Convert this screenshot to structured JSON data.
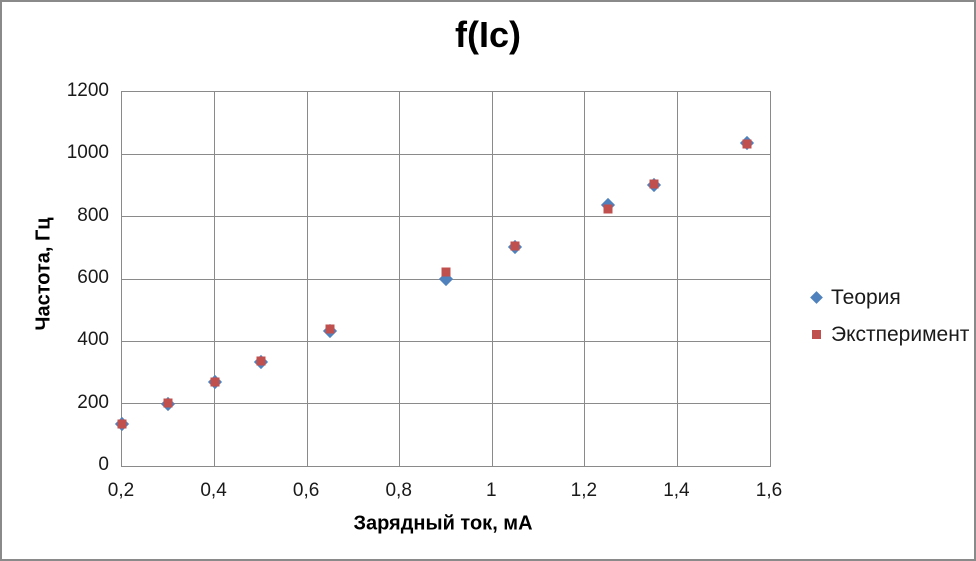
{
  "title": "f(Ic)",
  "axes": {
    "x_title": "Зарядный ток, мА",
    "y_title": "Частота, Гц"
  },
  "colors": {
    "series_theory": "#4F81BD",
    "series_experiment": "#C0504D",
    "gridline": "#8a8a8a",
    "frame_border": "#8a8a8a",
    "background": "#ffffff",
    "text": "#1a1a1a"
  },
  "chart_data": {
    "type": "scatter",
    "title": "f(Ic)",
    "xlabel": "Зарядный ток, мА",
    "ylabel": "Частота, Гц",
    "xlim": [
      0.2,
      1.6
    ],
    "ylim": [
      0,
      1200
    ],
    "grid": true,
    "legend_position": "right",
    "x_tick_values": [
      0.2,
      0.4,
      0.6,
      0.8,
      1.0,
      1.2,
      1.4,
      1.6
    ],
    "x_tick_labels": [
      "0,2",
      "0,4",
      "0,6",
      "0,8",
      "1",
      "1,2",
      "1,4",
      "1,6"
    ],
    "y_tick_values": [
      0,
      200,
      400,
      600,
      800,
      1000,
      1200
    ],
    "y_tick_labels": [
      "0",
      "200",
      "400",
      "600",
      "800",
      "1000",
      "1200"
    ],
    "series": [
      {
        "name": "Теория",
        "marker": "diamond",
        "color": "#4F81BD",
        "points": [
          [
            0.2,
            135
          ],
          [
            0.3,
            200
          ],
          [
            0.4,
            268
          ],
          [
            0.5,
            335
          ],
          [
            0.65,
            434
          ],
          [
            0.9,
            600
          ],
          [
            1.05,
            704
          ],
          [
            1.25,
            838
          ],
          [
            1.35,
            903
          ],
          [
            1.55,
            1037
          ]
        ]
      },
      {
        "name": "Экстперимент",
        "marker": "square",
        "color": "#C0504D",
        "points": [
          [
            0.2,
            135
          ],
          [
            0.3,
            201
          ],
          [
            0.4,
            270
          ],
          [
            0.5,
            338
          ],
          [
            0.65,
            439
          ],
          [
            0.9,
            624
          ],
          [
            1.05,
            706
          ],
          [
            1.25,
            823
          ],
          [
            1.35,
            905
          ],
          [
            1.55,
            1034
          ]
        ]
      }
    ]
  }
}
